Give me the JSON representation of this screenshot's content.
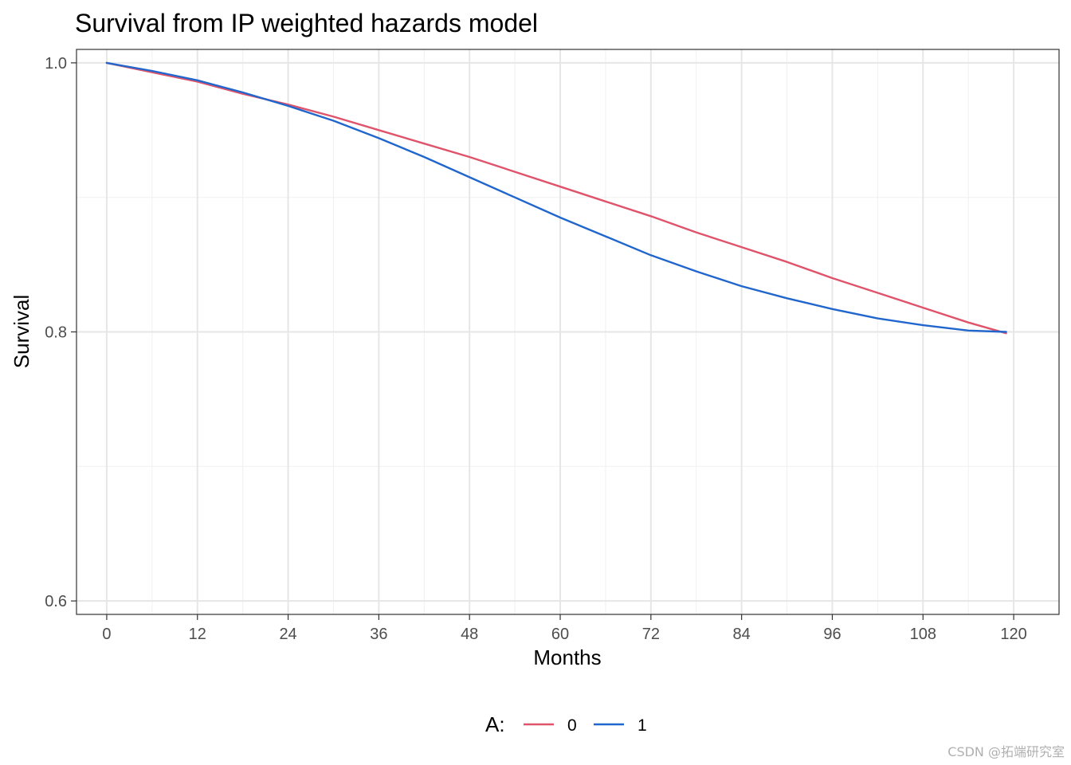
{
  "chart_data": {
    "type": "line",
    "title": "Survival from IP weighted hazards model",
    "xlabel": "Months",
    "ylabel": "Survival",
    "xlim": [
      -4,
      126
    ],
    "ylim": [
      0.59,
      1.01
    ],
    "x_ticks": [
      0,
      12,
      24,
      36,
      48,
      60,
      72,
      84,
      96,
      108,
      120
    ],
    "x_tick_labels": [
      "0",
      "12",
      "24",
      "36",
      "48",
      "60",
      "72",
      "84",
      "96",
      "108",
      "120"
    ],
    "y_ticks": [
      0.6,
      0.8,
      1.0
    ],
    "y_tick_labels": [
      "0.6",
      "0.8",
      "1.0"
    ],
    "grid": true,
    "legend": {
      "title": "A:",
      "position": "bottom"
    },
    "series": [
      {
        "name": "0",
        "color": "#DF536B",
        "x": [
          0,
          6,
          12,
          18,
          24,
          30,
          36,
          42,
          48,
          54,
          60,
          66,
          72,
          78,
          84,
          90,
          96,
          102,
          108,
          114,
          119
        ],
        "values": [
          1.0,
          0.993,
          0.986,
          0.977,
          0.969,
          0.96,
          0.95,
          0.94,
          0.93,
          0.919,
          0.908,
          0.897,
          0.886,
          0.874,
          0.863,
          0.852,
          0.84,
          0.829,
          0.818,
          0.807,
          0.799
        ]
      },
      {
        "name": "1",
        "color": "#2166CC",
        "x": [
          0,
          6,
          12,
          18,
          24,
          30,
          36,
          42,
          48,
          54,
          60,
          66,
          72,
          78,
          84,
          90,
          96,
          102,
          108,
          114,
          119
        ],
        "values": [
          1.0,
          0.994,
          0.987,
          0.978,
          0.968,
          0.957,
          0.944,
          0.93,
          0.915,
          0.9,
          0.885,
          0.871,
          0.857,
          0.845,
          0.834,
          0.825,
          0.817,
          0.81,
          0.805,
          0.801,
          0.8
        ]
      }
    ]
  },
  "watermark": "CSDN @拓端研究室"
}
